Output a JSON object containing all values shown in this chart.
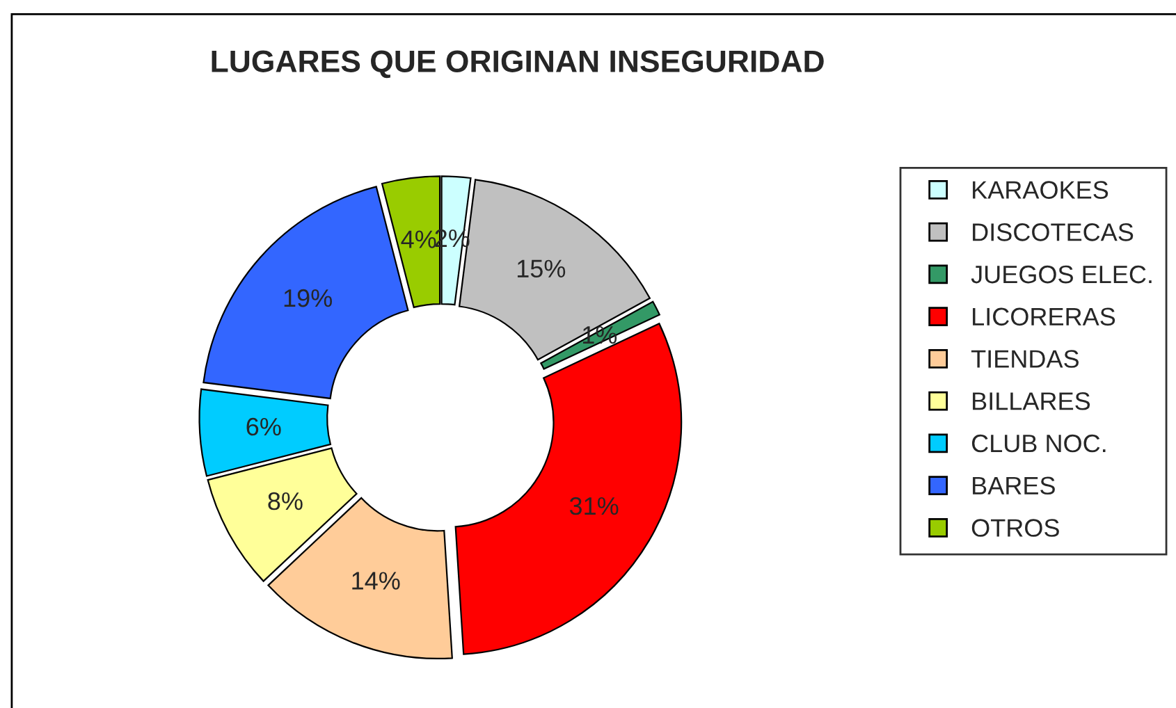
{
  "chart_data": {
    "type": "donut",
    "title": "LUGARES QUE ORIGINAN INSEGURIDAD",
    "categories": [
      "KARAOKES",
      "DISCOTECAS",
      "JUEGOS ELEC.",
      "LICORERAS",
      "TIENDAS",
      "BILLARES",
      "CLUB NOC.",
      "BARES",
      "OTROS"
    ],
    "values": [
      2,
      15,
      1,
      31,
      14,
      8,
      6,
      19,
      4
    ],
    "value_labels": [
      "2%",
      "15%",
      "1%",
      "31%",
      "14%",
      "8%",
      "6%",
      "19%",
      "4%"
    ],
    "colors": [
      "#ccffff",
      "#c0c0c0",
      "#339966",
      "#ff0000",
      "#ffcc99",
      "#ffff99",
      "#00ccff",
      "#3366ff",
      "#99cc00"
    ],
    "legend": "right"
  }
}
